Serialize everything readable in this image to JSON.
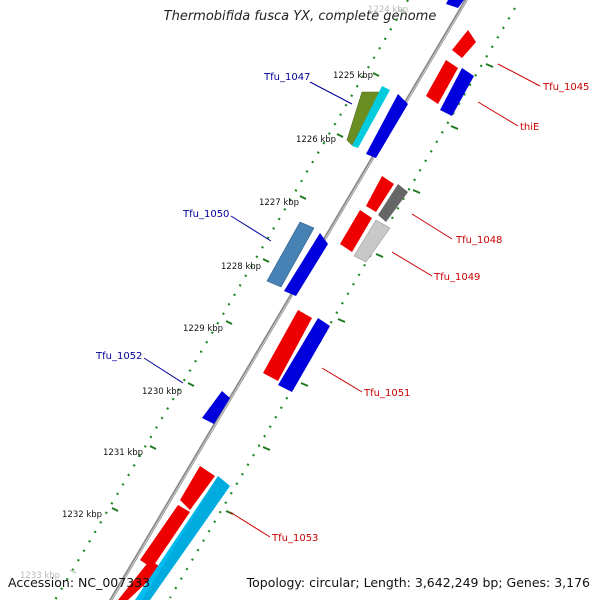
{
  "title": "Thermobifida fusca YX, complete genome",
  "footer": {
    "accession": "Accession: NC_007333",
    "topology": "Topology: circular; Length: 3,642,249 bp; Genes: 3,176"
  },
  "colors": {
    "backbone": "#8a8a8a",
    "dots": "#1f8a1f",
    "tick_marks": "#1f7a1f",
    "label_forward": "#000099",
    "label_reverse": "#cc0000",
    "gene_red": "#ee0000",
    "gene_blue": "#0000dd",
    "gene_olive": "#6b8e23",
    "gene_cyan": "#00ccdd",
    "gene_steelblue": "#4682b4",
    "gene_darkgray": "#666666",
    "gene_lightgray": "#c8c8c8",
    "gene_skyblue": "#00bbee"
  },
  "ruler": [
    {
      "label": "1224 kbp",
      "faded": true
    },
    {
      "label": "1225 kbp"
    },
    {
      "label": "1226 kbp"
    },
    {
      "label": "1227 kbp"
    },
    {
      "label": "1228 kbp"
    },
    {
      "label": "1229 kbp"
    },
    {
      "label": "1230 kbp"
    },
    {
      "label": "1231 kbp"
    },
    {
      "label": "1232 kbp"
    },
    {
      "label": "1233 kbp",
      "faded": true
    }
  ],
  "gene_labels": [
    {
      "text": "Tfu_1045",
      "strand": "reverse"
    },
    {
      "text": "thiE",
      "strand": "reverse"
    },
    {
      "text": "Tfu_1047",
      "strand": "forward"
    },
    {
      "text": "Tfu_1048",
      "strand": "reverse"
    },
    {
      "text": "Tfu_1049",
      "strand": "reverse"
    },
    {
      "text": "Tfu_1050",
      "strand": "forward"
    },
    {
      "text": "Tfu_1051",
      "strand": "reverse"
    },
    {
      "text": "Tfu_1052",
      "strand": "forward"
    },
    {
      "text": "Tfu_1053",
      "strand": "reverse"
    }
  ]
}
